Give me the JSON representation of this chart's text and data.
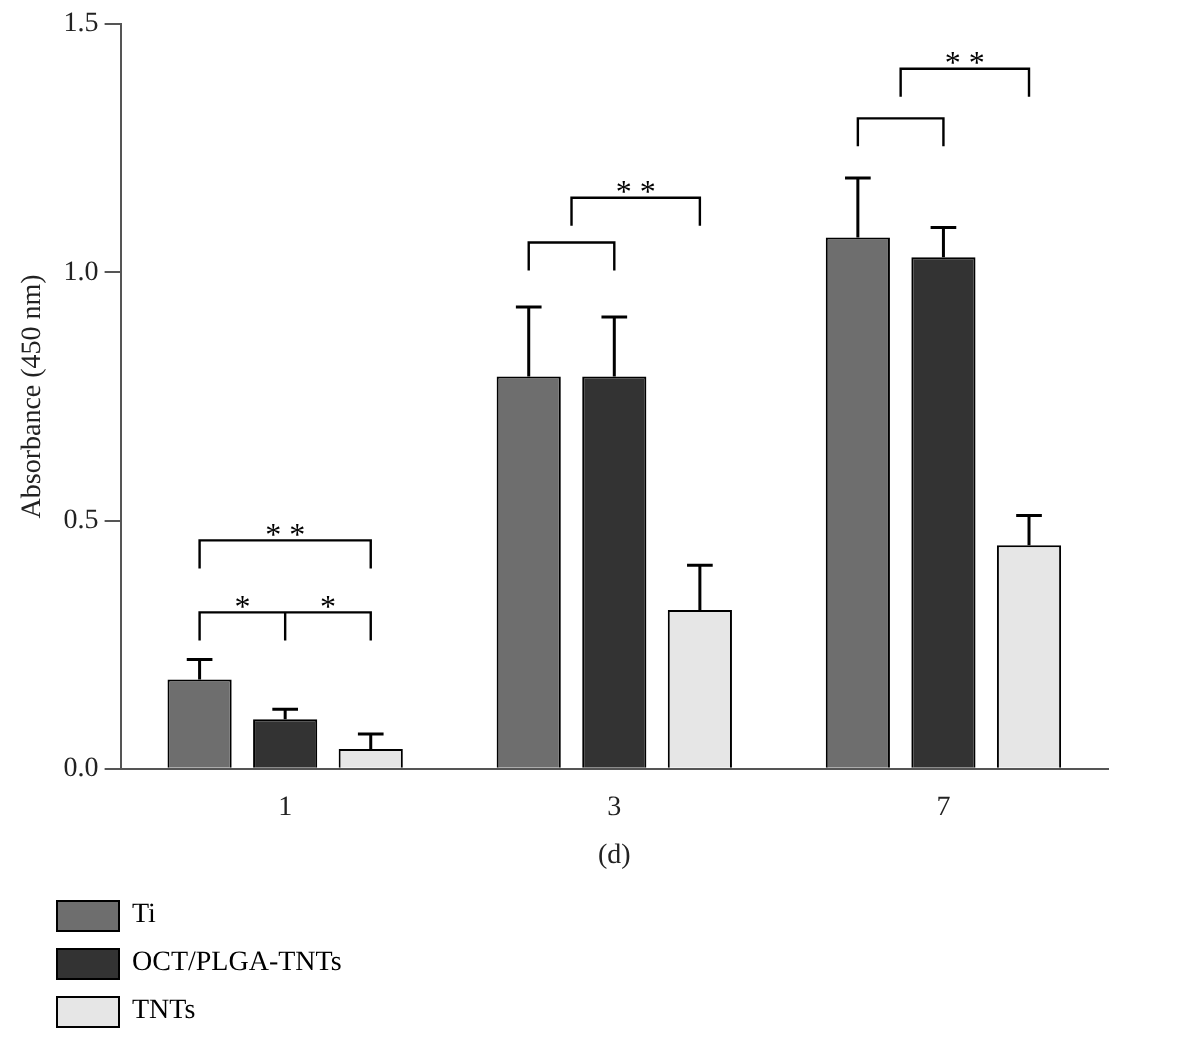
{
  "chart_data": {
    "type": "bar",
    "xlabel": "(d)",
    "ylabel": "Absorbance (450 nm)",
    "categories": [
      "1",
      "3",
      "7"
    ],
    "series": [
      {
        "name": "Ti",
        "color": "#6e6e6e",
        "values": [
          0.18,
          0.79,
          1.07
        ],
        "errors": [
          [
            0.18,
            0.22
          ],
          [
            0.79,
            0.93
          ],
          [
            1.07,
            1.19
          ]
        ]
      },
      {
        "name": "OCT/PLGA-TNTs",
        "color": "#333333",
        "values": [
          0.1,
          0.79,
          1.03
        ],
        "errors": [
          [
            0.1,
            0.12
          ],
          [
            0.79,
            0.91
          ],
          [
            1.03,
            1.09
          ]
        ]
      },
      {
        "name": "TNTs",
        "color": "#e6e6e6",
        "values": [
          0.04,
          0.32,
          0.45
        ],
        "errors": [
          [
            0.04,
            0.07
          ],
          [
            0.32,
            0.41
          ],
          [
            0.45,
            0.51
          ]
        ]
      }
    ],
    "ylim": [
      0,
      1.5
    ],
    "yticks": [
      {
        "value": 0,
        "label": "0.0"
      },
      {
        "value": 0.5,
        "label": "0.5"
      },
      {
        "value": 1,
        "label": "1.0"
      },
      {
        "value": 1.5,
        "label": "1.5"
      }
    ],
    "grid": false,
    "legend": "bottom left",
    "annotations": [
      "*",
      "*",
      "* *",
      "* *",
      "* *"
    ]
  }
}
